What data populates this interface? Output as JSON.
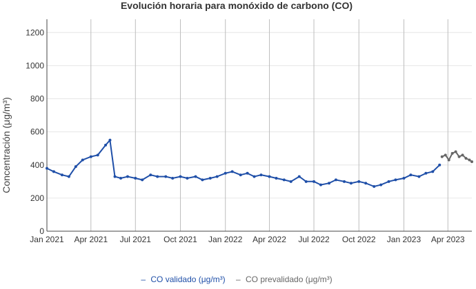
{
  "chart_data": {
    "type": "line",
    "title": "Evolución horaria para monóxido de carbono (CO)",
    "xlabel": "",
    "ylabel": "Concentración (μg/m³)",
    "ylim": [
      0,
      1280
    ],
    "y_ticks": [
      0,
      200,
      400,
      600,
      800,
      1000,
      1200
    ],
    "xlim": [
      "2021-01-01",
      "2023-05-20"
    ],
    "x_ticks": [
      {
        "date": "2021-01-01",
        "label": "Jan 2021"
      },
      {
        "date": "2021-04-01",
        "label": "Apr 2021"
      },
      {
        "date": "2021-07-01",
        "label": "Jul 2021"
      },
      {
        "date": "2021-10-01",
        "label": "Oct 2021"
      },
      {
        "date": "2022-01-01",
        "label": "Jan 2022"
      },
      {
        "date": "2022-04-01",
        "label": "Apr 2022"
      },
      {
        "date": "2022-07-01",
        "label": "Jul 2022"
      },
      {
        "date": "2022-10-01",
        "label": "Oct 2022"
      },
      {
        "date": "2023-01-01",
        "label": "Jan 2023"
      },
      {
        "date": "2023-04-01",
        "label": "Apr 2023"
      }
    ],
    "grid": true,
    "legend_position": "bottom-center",
    "series": [
      {
        "name": "CO validado (μg/m³)",
        "color": "#1f4fa8",
        "x": [
          "2021-01-01",
          "2021-01-15",
          "2021-02-01",
          "2021-02-15",
          "2021-03-01",
          "2021-03-15",
          "2021-04-01",
          "2021-04-15",
          "2021-05-01",
          "2021-05-10",
          "2021-05-20",
          "2021-06-01",
          "2021-06-15",
          "2021-07-01",
          "2021-07-15",
          "2021-08-01",
          "2021-08-15",
          "2021-09-01",
          "2021-09-15",
          "2021-10-01",
          "2021-10-15",
          "2021-11-01",
          "2021-11-15",
          "2021-12-01",
          "2021-12-15",
          "2022-01-01",
          "2022-01-15",
          "2022-02-01",
          "2022-02-15",
          "2022-03-01",
          "2022-03-15",
          "2022-04-01",
          "2022-04-15",
          "2022-05-01",
          "2022-05-15",
          "2022-06-01",
          "2022-06-15",
          "2022-07-01",
          "2022-07-15",
          "2022-08-01",
          "2022-08-15",
          "2022-09-01",
          "2022-09-15",
          "2022-10-01",
          "2022-10-15",
          "2022-11-01",
          "2022-11-15",
          "2022-12-01",
          "2022-12-15",
          "2023-01-01",
          "2023-01-15",
          "2023-02-01",
          "2023-02-15",
          "2023-03-01",
          "2023-03-15"
        ],
        "values": [
          380,
          360,
          340,
          330,
          390,
          430,
          450,
          460,
          520,
          550,
          330,
          320,
          330,
          320,
          310,
          340,
          330,
          330,
          320,
          330,
          320,
          330,
          310,
          320,
          330,
          350,
          360,
          340,
          350,
          330,
          340,
          330,
          320,
          310,
          300,
          330,
          300,
          300,
          280,
          290,
          310,
          300,
          290,
          300,
          290,
          270,
          280,
          300,
          310,
          320,
          340,
          330,
          350,
          360,
          400
        ]
      },
      {
        "name": "CO prevalidado (μg/m³)",
        "color": "#666666",
        "x": [
          "2023-03-20",
          "2023-03-27",
          "2023-04-03",
          "2023-04-10",
          "2023-04-17",
          "2023-04-24",
          "2023-05-01",
          "2023-05-08",
          "2023-05-15",
          "2023-05-20"
        ],
        "values": [
          450,
          460,
          430,
          470,
          480,
          450,
          460,
          440,
          430,
          420
        ]
      }
    ]
  }
}
